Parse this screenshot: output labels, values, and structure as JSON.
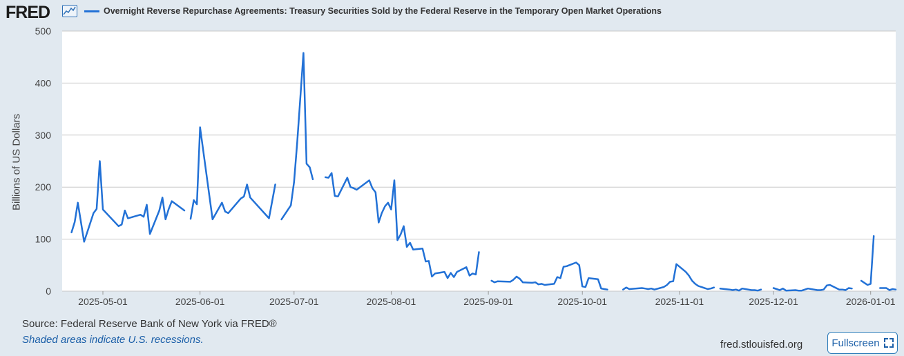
{
  "header": {
    "logo_text": "FRED",
    "logo_icon": "line-chart-icon",
    "series_title": "Overnight Reverse Repurchase Agreements: Treasury Securities Sold by the Federal Reserve in the Temporary Open Market Operations"
  },
  "footer": {
    "source": "Source: Federal Reserve Bank of New York via FRED®",
    "recession_note": "Shaded areas indicate U.S. recessions.",
    "site": "fred.stlouisfed.org",
    "fullscreen_label": "Fullscreen",
    "fullscreen_icon": "expand-icon"
  },
  "colors": {
    "line": "#2271d6",
    "background": "#e1e9f0",
    "plot": "#ffffff",
    "grid": "#c8c8c8"
  },
  "chart_data": {
    "type": "line",
    "title": "Overnight Reverse Repurchase Agreements: Treasury Securities Sold by the Federal Reserve in the Temporary Open Market Operations",
    "ylabel": "Billions of US Dollars",
    "xlabel": "",
    "ylim": [
      0,
      500
    ],
    "xlim": [
      "2025-04-18",
      "2026-01-09"
    ],
    "grid": "horizontal",
    "y_ticks": [
      0,
      100,
      200,
      300,
      400,
      500
    ],
    "x_ticks": [
      "2025-05-01",
      "2025-06-01",
      "2025-07-01",
      "2025-08-01",
      "2025-09-01",
      "2025-10-01",
      "2025-11-01",
      "2025-12-01",
      "2026-01-01"
    ],
    "series": [
      {
        "values_segments": [
          [
            [
              "2025-04-21",
              113
            ],
            [
              "2025-04-22",
              133
            ],
            [
              "2025-04-23",
              170
            ],
            [
              "2025-04-25",
              95
            ],
            [
              "2025-04-28",
              150
            ],
            [
              "2025-04-29",
              158
            ],
            [
              "2025-04-30",
              250
            ],
            [
              "2025-05-01",
              157
            ],
            [
              "2025-05-06",
              125
            ],
            [
              "2025-05-07",
              128
            ],
            [
              "2025-05-08",
              155
            ],
            [
              "2025-05-09",
              140
            ],
            [
              "2025-05-13",
              147
            ],
            [
              "2025-05-14",
              143
            ],
            [
              "2025-05-15",
              166
            ],
            [
              "2025-05-16",
              110
            ],
            [
              "2025-05-19",
              155
            ],
            [
              "2025-05-20",
              180
            ],
            [
              "2025-05-21",
              138
            ],
            [
              "2025-05-22",
              158
            ],
            [
              "2025-05-23",
              173
            ],
            [
              "2025-05-27",
              155
            ]
          ],
          [
            [
              "2025-05-29",
              139
            ],
            [
              "2025-05-30",
              175
            ],
            [
              "2025-05-31",
              167
            ],
            [
              "2025-06-01",
              315
            ],
            [
              "2025-06-05",
              138
            ],
            [
              "2025-06-08",
              170
            ],
            [
              "2025-06-09",
              153
            ],
            [
              "2025-06-10",
              150
            ],
            [
              "2025-06-14",
              178
            ],
            [
              "2025-06-15",
              182
            ],
            [
              "2025-06-16",
              205
            ],
            [
              "2025-06-17",
              180
            ],
            [
              "2025-06-23",
              140
            ],
            [
              "2025-06-25",
              205
            ]
          ],
          [
            [
              "2025-06-27",
              138
            ],
            [
              "2025-06-30",
              165
            ],
            [
              "2025-07-01",
              210
            ],
            [
              "2025-07-02",
              285
            ],
            [
              "2025-07-04",
              458
            ],
            [
              "2025-07-05",
              245
            ],
            [
              "2025-07-06",
              238
            ],
            [
              "2025-07-07",
              215
            ]
          ],
          [
            [
              "2025-07-11",
              219
            ],
            [
              "2025-07-12",
              218
            ],
            [
              "2025-07-13",
              227
            ],
            [
              "2025-07-14",
              183
            ],
            [
              "2025-07-15",
              182
            ],
            [
              "2025-07-18",
              218
            ],
            [
              "2025-07-19",
              200
            ],
            [
              "2025-07-20",
              198
            ],
            [
              "2025-07-21",
              195
            ],
            [
              "2025-07-25",
              213
            ],
            [
              "2025-07-26",
              198
            ],
            [
              "2025-07-27",
              190
            ],
            [
              "2025-07-28",
              132
            ],
            [
              "2025-07-29",
              150
            ],
            [
              "2025-07-30",
              163
            ],
            [
              "2025-07-31",
              170
            ],
            [
              "2025-08-01",
              157
            ],
            [
              "2025-08-02",
              213
            ],
            [
              "2025-08-03",
              98
            ],
            [
              "2025-08-04",
              109
            ],
            [
              "2025-08-05",
              125
            ],
            [
              "2025-08-06",
              85
            ],
            [
              "2025-08-07",
              93
            ],
            [
              "2025-08-08",
              80
            ],
            [
              "2025-08-11",
              82
            ],
            [
              "2025-08-12",
              57
            ],
            [
              "2025-08-13",
              58
            ],
            [
              "2025-08-14",
              28
            ],
            [
              "2025-08-15",
              34
            ],
            [
              "2025-08-18",
              37
            ],
            [
              "2025-08-19",
              25
            ],
            [
              "2025-08-20",
              35
            ],
            [
              "2025-08-21",
              27
            ],
            [
              "2025-08-22",
              37
            ],
            [
              "2025-08-25",
              46
            ],
            [
              "2025-08-26",
              30
            ],
            [
              "2025-08-27",
              34
            ],
            [
              "2025-08-28",
              32
            ],
            [
              "2025-08-29",
              75
            ]
          ],
          [
            [
              "2025-09-02",
              20
            ],
            [
              "2025-09-03",
              17
            ],
            [
              "2025-09-04",
              19
            ],
            [
              "2025-09-08",
              18
            ],
            [
              "2025-09-09",
              22
            ],
            [
              "2025-09-10",
              28
            ],
            [
              "2025-09-11",
              24
            ],
            [
              "2025-09-12",
              17
            ],
            [
              "2025-09-15",
              16
            ],
            [
              "2025-09-16",
              17
            ],
            [
              "2025-09-17",
              13
            ],
            [
              "2025-09-18",
              14
            ],
            [
              "2025-09-19",
              12
            ],
            [
              "2025-09-22",
              14
            ],
            [
              "2025-09-23",
              27
            ],
            [
              "2025-09-24",
              25
            ],
            [
              "2025-09-25",
              47
            ],
            [
              "2025-09-26",
              48
            ],
            [
              "2025-09-29",
              55
            ],
            [
              "2025-09-30",
              50
            ],
            [
              "2025-10-01",
              9
            ],
            [
              "2025-10-02",
              8
            ],
            [
              "2025-10-03",
              25
            ],
            [
              "2025-10-06",
              23
            ],
            [
              "2025-10-07",
              5
            ],
            [
              "2025-10-08",
              4
            ],
            [
              "2025-10-09",
              3
            ]
          ],
          [
            [
              "2025-10-14",
              3
            ],
            [
              "2025-10-15",
              7
            ],
            [
              "2025-10-16",
              4
            ],
            [
              "2025-10-20",
              6
            ],
            [
              "2025-10-21",
              5
            ],
            [
              "2025-10-22",
              4
            ],
            [
              "2025-10-23",
              5
            ],
            [
              "2025-10-24",
              3
            ],
            [
              "2025-10-27",
              8
            ],
            [
              "2025-10-28",
              12
            ],
            [
              "2025-10-29",
              18
            ],
            [
              "2025-10-30",
              19
            ],
            [
              "2025-10-31",
              52
            ],
            [
              "2025-11-03",
              37
            ],
            [
              "2025-11-04",
              30
            ],
            [
              "2025-11-05",
              20
            ],
            [
              "2025-11-06",
              14
            ],
            [
              "2025-11-07",
              10
            ],
            [
              "2025-11-10",
              4
            ],
            [
              "2025-11-11",
              5
            ],
            [
              "2025-11-12",
              7
            ]
          ],
          [
            [
              "2025-11-14",
              5
            ],
            [
              "2025-11-17",
              3
            ],
            [
              "2025-11-18",
              2
            ],
            [
              "2025-11-19",
              3
            ],
            [
              "2025-11-20",
              1
            ],
            [
              "2025-11-21",
              5
            ],
            [
              "2025-11-24",
              2
            ],
            [
              "2025-11-25",
              2
            ],
            [
              "2025-11-26",
              1
            ],
            [
              "2025-11-27",
              3
            ]
          ],
          [
            [
              "2025-12-01",
              6
            ],
            [
              "2025-12-02",
              4
            ],
            [
              "2025-12-03",
              2
            ],
            [
              "2025-12-04",
              5
            ],
            [
              "2025-12-05",
              1
            ],
            [
              "2025-12-08",
              2
            ],
            [
              "2025-12-09",
              1
            ],
            [
              "2025-12-10",
              1
            ],
            [
              "2025-12-11",
              3
            ],
            [
              "2025-12-12",
              5
            ],
            [
              "2025-12-15",
              2
            ],
            [
              "2025-12-16",
              2
            ],
            [
              "2025-12-17",
              3
            ],
            [
              "2025-12-18",
              11
            ],
            [
              "2025-12-19",
              12
            ],
            [
              "2025-12-22",
              3
            ],
            [
              "2025-12-23",
              3
            ],
            [
              "2025-12-24",
              2
            ],
            [
              "2025-12-25",
              6
            ],
            [
              "2025-12-26",
              5
            ]
          ],
          [
            [
              "2025-12-29",
              20
            ],
            [
              "2025-12-30",
              16
            ],
            [
              "2025-12-31",
              12
            ],
            [
              "2026-01-01",
              14
            ],
            [
              "2026-01-02",
              106
            ]
          ],
          [
            [
              "2026-01-04",
              6
            ],
            [
              "2026-01-05",
              6
            ],
            [
              "2026-01-06",
              6
            ],
            [
              "2026-01-07",
              2
            ],
            [
              "2026-01-08",
              4
            ],
            [
              "2026-01-09",
              3
            ]
          ]
        ]
      }
    ]
  }
}
